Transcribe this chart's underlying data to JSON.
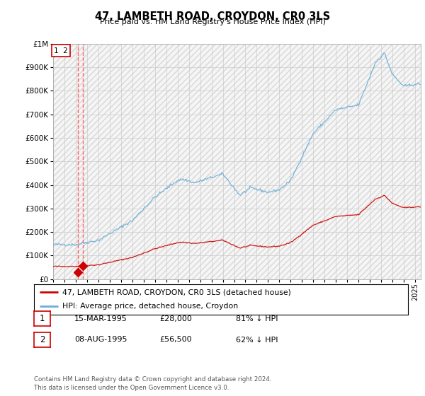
{
  "title": "47, LAMBETH ROAD, CROYDON, CR0 3LS",
  "subtitle": "Price paid vs. HM Land Registry's House Price Index (HPI)",
  "legend_line1": "47, LAMBETH ROAD, CROYDON, CR0 3LS (detached house)",
  "legend_line2": "HPI: Average price, detached house, Croydon",
  "footnote": "Contains HM Land Registry data © Crown copyright and database right 2024.\nThis data is licensed under the Open Government Licence v3.0.",
  "table_rows": [
    {
      "num": "1",
      "date": "15-MAR-1995",
      "price": "£28,000",
      "pct": "81% ↓ HPI"
    },
    {
      "num": "2",
      "date": "08-AUG-1995",
      "price": "£56,500",
      "pct": "62% ↓ HPI"
    }
  ],
  "sale_dates": [
    1995.205,
    1995.619
  ],
  "sale_prices": [
    28000,
    56500
  ],
  "red_line_color": "#cc0000",
  "blue_line_color": "#6baed6",
  "dashed_line_color": "#ff6666",
  "ylim": [
    0,
    1000000
  ],
  "xlim_start": 1993.0,
  "xlim_end": 2025.5,
  "background_color": "#ffffff",
  "grid_color": "#cccccc"
}
